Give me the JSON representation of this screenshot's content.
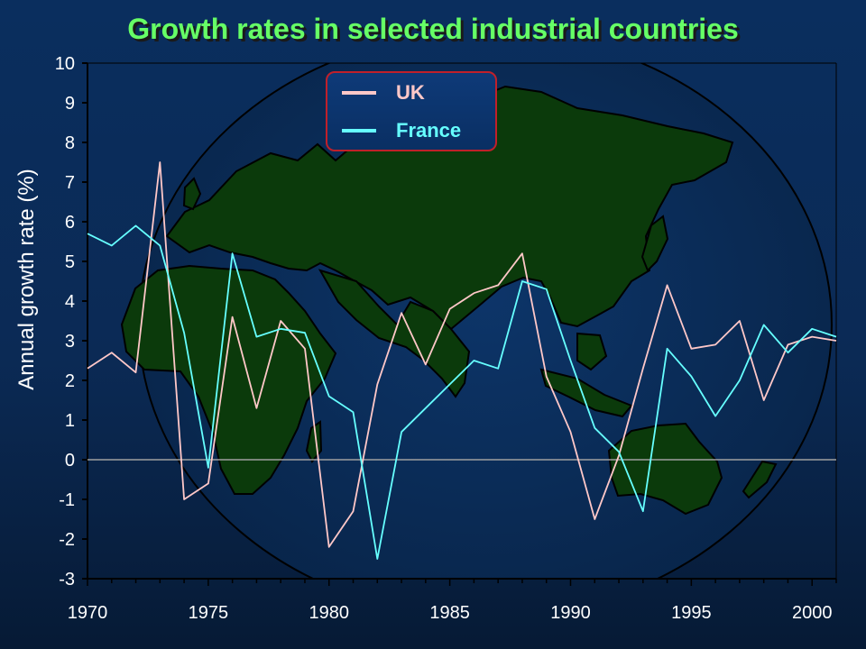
{
  "chart_data": {
    "type": "line",
    "title": "Growth rates in selected industrial countries",
    "xlabel": "",
    "ylabel": "Annual growth rate (%)",
    "xlim": [
      1970,
      2001
    ],
    "ylim": [
      -3,
      10
    ],
    "x_ticks": [
      1970,
      1975,
      1980,
      1985,
      1990,
      1995,
      2000
    ],
    "y_ticks": [
      -3,
      -2,
      -1,
      0,
      1,
      2,
      3,
      4,
      5,
      6,
      7,
      8,
      9,
      10
    ],
    "x": [
      1970,
      1971,
      1972,
      1973,
      1974,
      1975,
      1976,
      1977,
      1978,
      1979,
      1980,
      1981,
      1982,
      1983,
      1984,
      1985,
      1986,
      1987,
      1988,
      1989,
      1990,
      1991,
      1992,
      1993,
      1994,
      1995,
      1996,
      1997,
      1998,
      1999,
      2000,
      2001
    ],
    "series": [
      {
        "name": "UK",
        "color": "#ffc8c8",
        "values": [
          2.3,
          2.7,
          2.2,
          7.5,
          -1.0,
          -0.6,
          3.6,
          1.3,
          3.5,
          2.8,
          -2.2,
          -1.3,
          1.9,
          3.7,
          2.4,
          3.8,
          4.2,
          4.4,
          5.2,
          2.1,
          0.7,
          -1.5,
          0.1,
          2.3,
          4.4,
          2.8,
          2.9,
          3.5,
          1.5,
          2.9,
          3.1,
          3.0
        ]
      },
      {
        "name": "France",
        "color": "#66ffff",
        "values": [
          5.7,
          5.4,
          5.9,
          5.4,
          3.2,
          -0.2,
          5.2,
          3.1,
          3.3,
          3.2,
          1.6,
          1.2,
          -2.5,
          0.7,
          1.3,
          1.9,
          2.5,
          2.3,
          4.5,
          4.3,
          2.5,
          0.8,
          0.2,
          -1.3,
          2.8,
          2.1,
          1.1,
          2.0,
          3.4,
          2.7,
          3.3,
          3.1
        ]
      }
    ],
    "grid": false,
    "legend_position": "top-center",
    "zero_line": true
  },
  "background": {
    "image": "world-map-globe",
    "land_color": "#0b3a0b",
    "ocean_color": "#0b2a55"
  }
}
